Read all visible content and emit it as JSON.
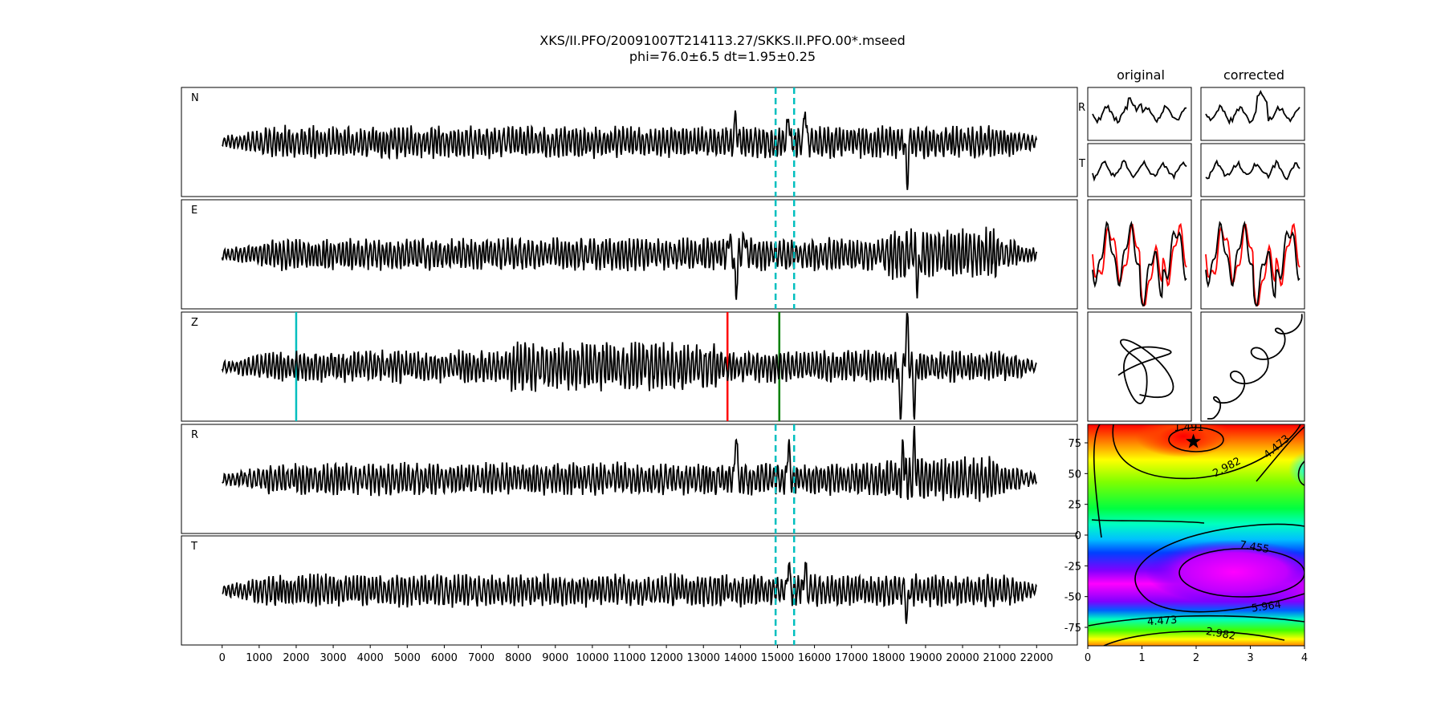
{
  "chart_data": {
    "type": "line",
    "title_lines": [
      "XKS/II.PFO/20091007T214113.27/SKKS.II.PFO.00*.mseed",
      "phi=76.0±6.5 dt=1.95±0.25"
    ],
    "waveforms": {
      "x_range": [
        0,
        22000
      ],
      "x_axis_limits": [
        -1100,
        23100
      ],
      "x_ticks": [
        0,
        1000,
        2000,
        3000,
        4000,
        5000,
        6000,
        7000,
        8000,
        9000,
        10000,
        11000,
        12000,
        13000,
        14000,
        15000,
        16000,
        17000,
        18000,
        19000,
        20000,
        21000,
        22000
      ],
      "x_tick_labels": [
        "0",
        "1000",
        "2000",
        "3000",
        "4000",
        "5000",
        "6000",
        "7000",
        "8000",
        "9000",
        "10000",
        "11000",
        "12000",
        "13000",
        "14000",
        "15000",
        "16000",
        "17000",
        "18000",
        "19000",
        "20000",
        "21000",
        "22000"
      ],
      "traces": [
        {
          "label": "N",
          "dashed_window": [
            14950,
            15450
          ],
          "spikes": [
            [
              13880,
              0.6
            ],
            [
              15300,
              0.7
            ],
            [
              15750,
              0.85
            ],
            [
              18500,
              -0.9
            ]
          ],
          "burst": [
            18100,
            20000,
            1.0
          ]
        },
        {
          "label": "E",
          "dashed_window": [
            14950,
            15450
          ],
          "spikes": [
            [
              13880,
              -1.0
            ],
            [
              13700,
              0.5
            ],
            [
              14100,
              0.5
            ],
            [
              18800,
              -0.8
            ]
          ],
          "burst": [
            17900,
            21000,
            1.6
          ]
        },
        {
          "label": "Z",
          "dashed_window": null,
          "spikes": [
            [
              18320,
              -1.2
            ],
            [
              18500,
              1.2
            ],
            [
              18700,
              -1.0
            ]
          ],
          "burst": [
            7800,
            13500,
            1.5
          ],
          "markers": [
            {
              "x": 2000,
              "color": "#00BFBF"
            },
            {
              "x": 13650,
              "color": "#ff0000"
            },
            {
              "x": 15050,
              "color": "#008000"
            }
          ]
        },
        {
          "label": "R",
          "dashed_window": [
            14950,
            15450
          ],
          "spikes": [
            [
              13880,
              1.2
            ],
            [
              15300,
              0.9
            ],
            [
              18400,
              0.7
            ],
            [
              18700,
              0.9
            ]
          ],
          "burst": [
            17900,
            21000,
            1.4
          ]
        },
        {
          "label": "T",
          "dashed_window": [
            14950,
            15450
          ],
          "spikes": [
            [
              15300,
              0.7
            ],
            [
              15750,
              0.6
            ],
            [
              18500,
              -0.6
            ]
          ],
          "burst": [
            7500,
            8500,
            1.0
          ]
        }
      ],
      "dashed_color": "#00BFBF"
    },
    "small_panels": {
      "column_titles": [
        "original",
        "corrected"
      ],
      "row_labels": [
        "R",
        "T"
      ]
    },
    "error_surface": {
      "x_range": [
        0,
        4
      ],
      "y_range": [
        -90,
        90
      ],
      "x_ticks": [
        0,
        1,
        2,
        3,
        4
      ],
      "y_ticks": [
        75,
        50,
        25,
        0,
        -25,
        -50,
        -75
      ],
      "best": {
        "dt": 1.95,
        "phi": 76.0
      },
      "contour_labels": [
        "1.491",
        "2.982",
        "4.473",
        "7.455",
        "5.964",
        "4.473",
        "2.982"
      ]
    }
  }
}
